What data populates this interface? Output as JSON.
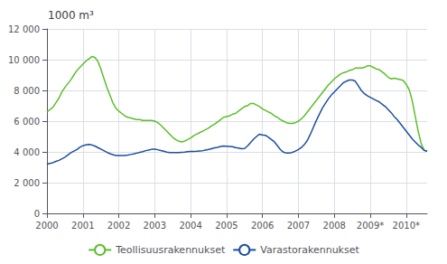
{
  "chart_data": {
    "type": "line",
    "title": "1000 m³",
    "x": [
      2000,
      2000.0833333333,
      2000.1666666667,
      2000.25,
      2000.3333333333,
      2000.4166666667,
      2000.5,
      2000.5833333333,
      2000.6666666667,
      2000.75,
      2000.8333333333,
      2000.9166666667,
      2001,
      2001.0833333333,
      2001.1666666667,
      2001.25,
      2001.3333333333,
      2001.4166666667,
      2001.5,
      2001.5833333333,
      2001.6666666667,
      2001.75,
      2001.8333333333,
      2001.9166666667,
      2002,
      2002.0833333333,
      2002.1666666667,
      2002.25,
      2002.3333333333,
      2002.4166666667,
      2002.5,
      2002.5833333333,
      2002.6666666667,
      2002.75,
      2002.8333333333,
      2002.9166666667,
      2003,
      2003.0833333333,
      2003.1666666667,
      2003.25,
      2003.3333333333,
      2003.4166666667,
      2003.5,
      2003.5833333333,
      2003.6666666667,
      2003.75,
      2003.8333333333,
      2003.9166666667,
      2004,
      2004.0833333333,
      2004.1666666667,
      2004.25,
      2004.3333333333,
      2004.4166666667,
      2004.5,
      2004.5833333333,
      2004.6666666667,
      2004.75,
      2004.8333333333,
      2004.9166666667,
      2005,
      2005.0833333333,
      2005.1666666667,
      2005.25,
      2005.3333333333,
      2005.4166666667,
      2005.5,
      2005.5833333333,
      2005.6666666667,
      2005.75,
      2005.8333333333,
      2005.9166666667,
      2006,
      2006.0833333333,
      2006.1666666667,
      2006.25,
      2006.3333333333,
      2006.4166666667,
      2006.5,
      2006.5833333333,
      2006.6666666667,
      2006.75,
      2006.8333333333,
      2006.9166666667,
      2007,
      2007.0833333333,
      2007.1666666667,
      2007.25,
      2007.3333333333,
      2007.4166666667,
      2007.5,
      2007.5833333333,
      2007.6666666667,
      2007.75,
      2007.8333333333,
      2007.9166666667,
      2008,
      2008.0833333333,
      2008.1666666667,
      2008.25,
      2008.3333333333,
      2008.4166666667,
      2008.5,
      2008.5833333333,
      2008.6666666667,
      2008.75,
      2008.8333333333,
      2008.9166666667,
      2009,
      2009.0833333333,
      2009.1666666667,
      2009.25,
      2009.3333333333,
      2009.4166666667,
      2009.5,
      2009.5833333333,
      2009.6666666667,
      2009.75,
      2009.8333333333,
      2009.9166666667,
      2010,
      2010.0833333333,
      2010.1666666667,
      2010.25,
      2010.3333333333,
      2010.4166666667,
      2010.5,
      2010.5833333333
    ],
    "xlim": [
      2000,
      2010.5833333333
    ],
    "xticks": [
      2000,
      2001,
      2002,
      2003,
      2004,
      2005,
      2006,
      2007,
      2008,
      {
        "value": 2009,
        "label": "2009*"
      },
      {
        "value": 2010,
        "label": "2010*"
      }
    ],
    "ylim": [
      0,
      12000
    ],
    "yticks": [
      0,
      {
        "value": 2000,
        "label": "2 000"
      },
      {
        "value": 4000,
        "label": "4 000"
      },
      {
        "value": 6000,
        "label": "6 000"
      },
      {
        "value": 8000,
        "label": "8 000"
      },
      {
        "value": 10000,
        "label": "10 000"
      },
      {
        "value": 12000,
        "label": "12 000"
      }
    ],
    "grid": true,
    "legend": "bottom",
    "series": [
      {
        "name": "Teollisuusrakennukset",
        "color": "#5bbf2a",
        "values": [
          6600,
          6750,
          6900,
          7200,
          7500,
          7900,
          8200,
          8450,
          8700,
          9000,
          9300,
          9500,
          9700,
          9900,
          10050,
          10200,
          10150,
          9900,
          9400,
          8800,
          8200,
          7700,
          7200,
          6850,
          6650,
          6500,
          6350,
          6250,
          6200,
          6150,
          6100,
          6100,
          6050,
          6050,
          6050,
          6050,
          6000,
          5900,
          5750,
          5550,
          5350,
          5150,
          4950,
          4800,
          4700,
          4650,
          4700,
          4800,
          4900,
          5050,
          5150,
          5250,
          5350,
          5450,
          5550,
          5700,
          5800,
          5950,
          6100,
          6250,
          6300,
          6350,
          6450,
          6500,
          6650,
          6800,
          6950,
          7000,
          7150,
          7150,
          7050,
          6950,
          6800,
          6700,
          6600,
          6500,
          6350,
          6250,
          6100,
          6000,
          5900,
          5850,
          5850,
          5900,
          6000,
          6150,
          6350,
          6600,
          6850,
          7100,
          7350,
          7600,
          7850,
          8100,
          8350,
          8550,
          8750,
          8900,
          9050,
          9150,
          9200,
          9300,
          9350,
          9450,
          9450,
          9450,
          9500,
          9600,
          9600,
          9500,
          9400,
          9350,
          9200,
          9050,
          8850,
          8750,
          8800,
          8750,
          8700,
          8650,
          8400,
          8050,
          7350,
          6350,
          5350,
          4550,
          4100,
          4050
        ]
      },
      {
        "name": "Varastorakennukset",
        "color": "#1c4fa0",
        "values": [
          3200,
          3250,
          3300,
          3380,
          3450,
          3550,
          3650,
          3800,
          3950,
          4050,
          4150,
          4300,
          4400,
          4450,
          4480,
          4450,
          4380,
          4280,
          4180,
          4080,
          3980,
          3880,
          3820,
          3770,
          3760,
          3760,
          3770,
          3790,
          3830,
          3870,
          3920,
          3970,
          4020,
          4080,
          4120,
          4170,
          4180,
          4140,
          4090,
          4040,
          3990,
          3960,
          3960,
          3960,
          3960,
          3970,
          3980,
          4010,
          4030,
          4030,
          4040,
          4060,
          4080,
          4120,
          4160,
          4210,
          4260,
          4300,
          4350,
          4380,
          4370,
          4360,
          4340,
          4280,
          4250,
          4210,
          4220,
          4380,
          4600,
          4820,
          5000,
          5150,
          5100,
          5080,
          4950,
          4800,
          4650,
          4400,
          4150,
          3980,
          3920,
          3920,
          3970,
          4050,
          4150,
          4280,
          4480,
          4750,
          5150,
          5600,
          6050,
          6450,
          6850,
          7150,
          7450,
          7700,
          7900,
          8100,
          8300,
          8500,
          8600,
          8680,
          8680,
          8600,
          8300,
          8000,
          7800,
          7650,
          7550,
          7450,
          7350,
          7250,
          7100,
          6950,
          6750,
          6550,
          6300,
          6100,
          5850,
          5600,
          5350,
          5100,
          4850,
          4650,
          4450,
          4300,
          4100,
          4050
        ]
      }
    ]
  }
}
